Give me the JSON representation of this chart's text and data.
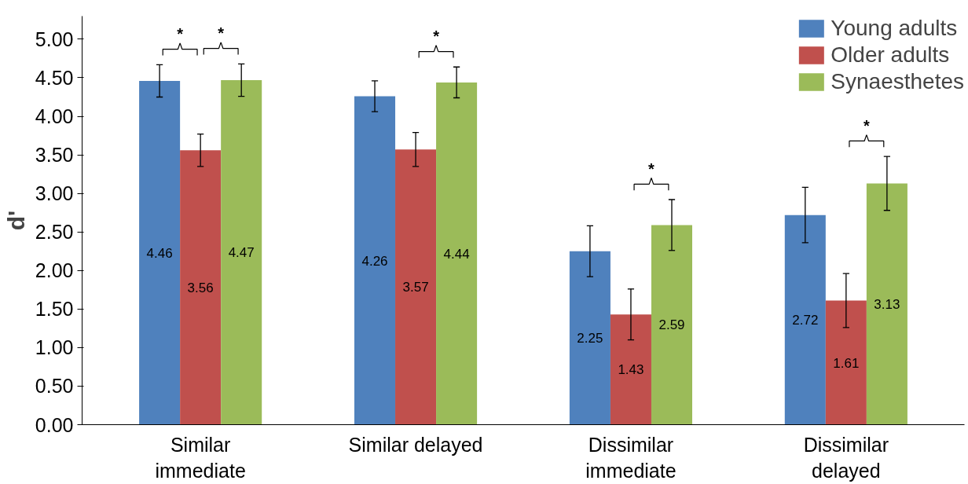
{
  "chart_data": {
    "type": "bar",
    "ylabel": "d'",
    "categories": [
      "Similar immediate",
      "Similar delayed",
      "Dissimilar immediate",
      "Dissimilar delayed"
    ],
    "series": [
      {
        "name": "Young adults",
        "color": "#4f81bd",
        "values": [
          4.46,
          4.26,
          2.25,
          2.72
        ],
        "errors": [
          0.21,
          0.2,
          0.33,
          0.36
        ]
      },
      {
        "name": "Older adults",
        "color": "#c0504d",
        "values": [
          3.56,
          3.57,
          1.43,
          1.61
        ],
        "errors": [
          0.21,
          0.22,
          0.33,
          0.35
        ]
      },
      {
        "name": "Synaesthetes",
        "color": "#9bbb59",
        "values": [
          4.47,
          4.44,
          2.59,
          3.13
        ],
        "errors": [
          0.21,
          0.2,
          0.33,
          0.35
        ]
      }
    ],
    "ylim": [
      0,
      5.3
    ],
    "yticks": [
      {
        "value": 0,
        "label": "0.00"
      },
      {
        "value": 0.5,
        "label": "0.50"
      },
      {
        "value": 1,
        "label": "1.00"
      },
      {
        "value": 1.5,
        "label": "1.50"
      },
      {
        "value": 2,
        "label": "2.00"
      },
      {
        "value": 2.5,
        "label": "2.50"
      },
      {
        "value": 3,
        "label": "3.00"
      },
      {
        "value": 3.5,
        "label": "3.50"
      },
      {
        "value": 4,
        "label": "4.00"
      },
      {
        "value": 4.5,
        "label": "4.50"
      },
      {
        "value": 5,
        "label": "5.00"
      }
    ],
    "data_labels": true,
    "grid": false,
    "legend": "top right",
    "annotations": [
      "*",
      "*",
      "*",
      "*",
      "*"
    ]
  }
}
